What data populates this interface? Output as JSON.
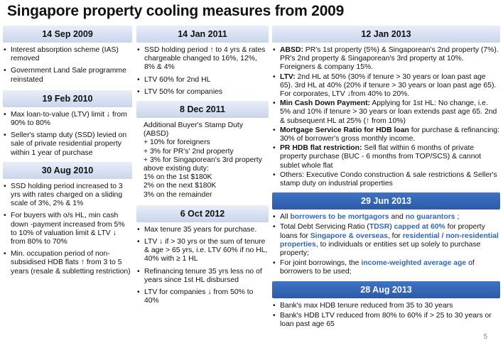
{
  "title": "Singapore property cooling measures from 2009",
  "page_number": "5",
  "col1": {
    "s1": {
      "date": "14 Sep 2009",
      "items": [
        "Interest absorption scheme (IAS) removed",
        "Government Land Sale programme reinstated"
      ]
    },
    "s2": {
      "date": "19 Feb 2010",
      "items": [
        "Max loan-to-value (LTV) limit ↓ from 90% to 80%",
        "Seller's stamp duty (SSD) levied on sale of private residential property within 1 year of purchase"
      ]
    },
    "s3": {
      "date": "30 Aug 2010",
      "items": [
        "SSD holding period increased to 3 yrs with rates charged on a sliding scale of 3%, 2% & 1%",
        "For buyers with o/s HL, min cash down -payment increased from 5% to 10% of valuation limit & LTV ↓ from 80% to 70%",
        "Min. occupation period of non-subsidised HDB flats ↑ from 3 to 5 years (resale & subletting restriction)"
      ]
    }
  },
  "col2": {
    "s1": {
      "date": "14 Jan 2011",
      "items": [
        "SSD holding period ↑ to 4 yrs & rates chargeable changed to 16%, 12%, 8% & 4%",
        "LTV 60% for 2nd HL",
        "LTV 50% for companies"
      ]
    },
    "s2": {
      "date": "8 Dec 2011",
      "lines": [
        "Additional Buyer's Stamp Duty (ABSD)",
        "+ 10% for foreigners",
        "+ 3% for PR's' 2nd property",
        "+ 3% for Singaporean's 3rd property above existing duty:",
        "1% on the 1st $180K",
        "2% on the next $180K",
        "3% on the remainder"
      ]
    },
    "s3": {
      "date": "6 Oct 2012",
      "items": [
        "Max tenure 35 years for purchase.",
        "LTV ↓ if > 30 yrs or the sum of tenure & age > 65 yrs, i.e. LTV 60% if no HL, 40% with ≥ 1 HL",
        "Refinancing tenure 35 yrs less no of years since 1st HL disbursed",
        "LTV for companies ↓ from 50% to 40%"
      ]
    }
  },
  "col3": {
    "s1": {
      "date": "12 Jan 2013",
      "items": [
        {
          "b": "ABSD:",
          "t": " PR's 1st property (5%) & Singaporean's 2nd property (7%). PR's 2nd property & Singaporean's 3rd property at 10%. Foreigners & company 15%."
        },
        {
          "b": "LTV:",
          "t": " 2nd HL at 50% (30% if tenure > 30 years or loan past age 65). 3rd HL at 40% (20% if tenure > 30 years or loan past age 65). For corporates, LTV ↓from 40% to 20%."
        },
        {
          "b": "Min Cash Down Payment:",
          "t": " Applying for 1st HL: No change, i.e. 5% and 10% if tenure > 30 years or loan extends past age 65. 2nd & subsequent HL at 25% (↑ from 10%)"
        },
        {
          "b": "Mortgage Service Ratio for HDB loan",
          "t": " for purchase & refinancing: 30% of borrower's gross monthly income."
        },
        {
          "b": "PR HDB flat restriction:",
          "t": " Sell flat within 6 months of private property purchase (BUC - 6 months from TOP/SCS) & cannot sublet whole flat"
        },
        {
          "b": "",
          "t": "Others: Executive Condo construction & sale restrictions & Seller's stamp duty on industrial properties"
        }
      ]
    },
    "s2": {
      "date": "29 Jun 2013",
      "item1": {
        "pre": "All ",
        "hl1": "borrowers to be mortgagors",
        "mid": " and ",
        "hl2": "no guarantors",
        "post": " ;"
      },
      "item2": {
        "pre": "Total Debt Servicing Ratio (",
        "hl1": "TDSR",
        "mid1": ") ",
        "hl2": "capped at 60%",
        "mid2": " for property loans for ",
        "hl3": "Singapore & overseas",
        "mid3": ", for ",
        "hl4": "residential / non-residential properties",
        "post": ", to individuals or entities set up solely to purchase property;"
      },
      "item3": {
        "pre": "For joint borrowings, the ",
        "hl1": "income-weighted average age",
        "post": " of borrowers to be used;"
      }
    },
    "s3": {
      "date": "28 Aug 2013",
      "items": [
        "Bank's max HDB tenure reduced from 35 to 30 years",
        "Bank's HDB LTV reduced from 80% to 60% if  > 25 to 30 years or loan past age 65"
      ]
    }
  },
  "colors": {
    "header_light": "#c9d5ec",
    "header_dark": "#2d5aa8",
    "highlight": "#2f67c0"
  }
}
